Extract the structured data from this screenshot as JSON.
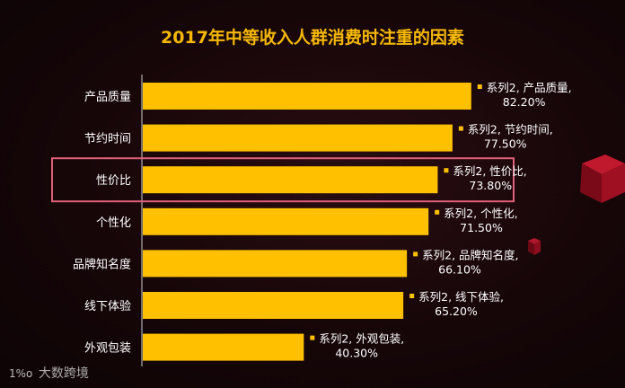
{
  "chart_data": {
    "type": "bar",
    "orientation": "horizontal",
    "title": "2017年中等收入人群消费时注重的因素",
    "categories": [
      "产品质量",
      "节约时间",
      "性价比",
      "个性化",
      "品牌知名度",
      "线下体验",
      "外观包装"
    ],
    "series": [
      {
        "name": "系列2",
        "values": [
          82.2,
          77.5,
          73.8,
          71.5,
          66.1,
          65.2,
          40.3
        ]
      }
    ],
    "data_labels": [
      [
        "系列2, 产品质量,",
        "82.20%"
      ],
      [
        "系列2, 节约时间,",
        "77.50%"
      ],
      [
        "系列2, 性价比,",
        "73.80%"
      ],
      [
        "系列2, 个性化,",
        "71.50%"
      ],
      [
        "系列2, 品牌知名度,",
        "66.10%"
      ],
      [
        "系列2, 线下体验,",
        "65.20%"
      ],
      [
        "系列2, 外观包装,",
        "40.30%"
      ]
    ],
    "highlighted_category": "性价比",
    "xlim": [
      0,
      100
    ],
    "grid": false,
    "legend": "none",
    "colors": {
      "bar": "#FFC000",
      "title": "#F5B800",
      "label_text": "#FFFFFF",
      "highlight_box": "#E0607A",
      "background": "#160608"
    }
  },
  "watermark": {
    "logo": "1%o",
    "text": "大数跨境"
  }
}
